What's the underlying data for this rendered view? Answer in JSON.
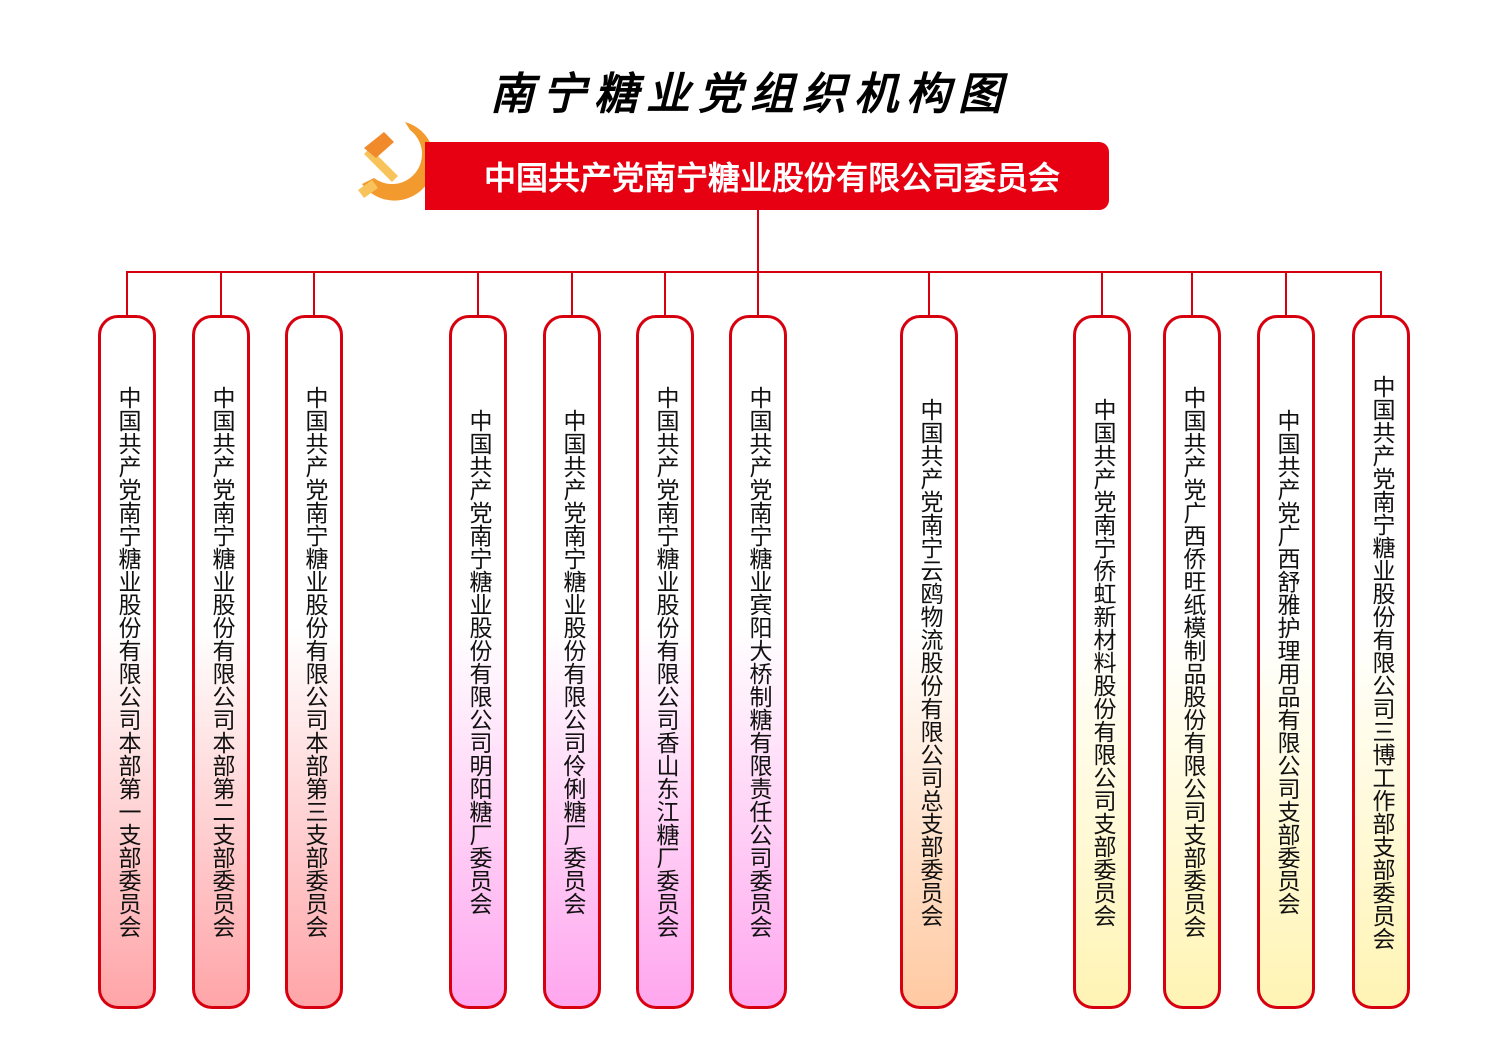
{
  "title": "南宁糖业党组织机构图",
  "root": {
    "label": "中国共产党南宁糖业股份有限公司委员会",
    "color": "#e60012"
  },
  "emblem_icon": "hammer-sickle-emblem",
  "line_color": "#d7000f",
  "branches": [
    {
      "label": "中国共产党南宁糖业股份有限公司本部第一支部委员会",
      "color": "#ffa5a8"
    },
    {
      "label": "中国共产党南宁糖业股份有限公司本部第二支部委员会",
      "color": "#ffa5a8"
    },
    {
      "label": "中国共产党南宁糖业股份有限公司本部第三支部委员会",
      "color": "#ffa5a8"
    },
    {
      "label": "中国共产党南宁糖业股份有限公司明阳糖厂委员会",
      "color": "#ffa6ee"
    },
    {
      "label": "中国共产党南宁糖业股份有限公司伶俐糖厂委员会",
      "color": "#ffa6ee"
    },
    {
      "label": "中国共产党南宁糖业股份有限公司香山东江糖厂委员会",
      "color": "#ffa6ee"
    },
    {
      "label": "中国共产党南宁糖业宾阳大桥制糖有限责任公司委员会",
      "color": "#ffa6ee"
    },
    {
      "label": "中国共产党南宁云鸥物流股份有限公司总支部委员会",
      "color": "#ffc9a2"
    },
    {
      "label": "中国共产党南宁侨虹新材料股份有限公司支部委员会",
      "color": "#fff4b4"
    },
    {
      "label": "中国共产党广西侨旺纸模制品股份有限公司支部委员会",
      "color": "#fff4b4"
    },
    {
      "label": "中国共产党广西舒雅护理用品有限公司支部委员会",
      "color": "#fff4b4"
    },
    {
      "label": "中国共产党南宁糖业股份有限公司三博工作部支部委员会",
      "color": "#fff4b4"
    }
  ]
}
